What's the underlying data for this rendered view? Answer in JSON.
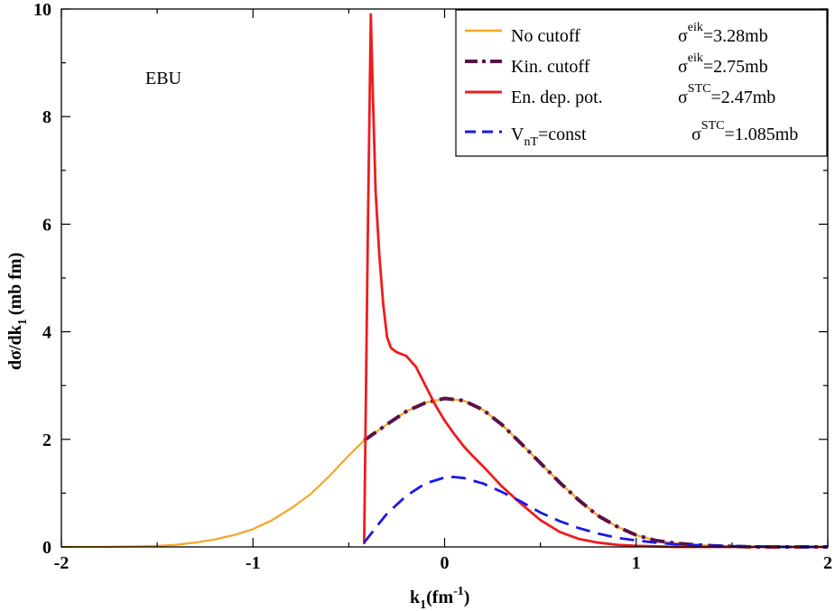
{
  "chart_data": {
    "type": "line",
    "title": "",
    "annotation": "EBU",
    "xlabel": {
      "main": "k",
      "sub": "1",
      "paren_open": "(fm",
      "sup": "-1",
      "paren_close": ")"
    },
    "ylabel": {
      "pre": "dσ/dk",
      "sub": "1",
      "post": "(mb fm)"
    },
    "xlim": [
      -2,
      2
    ],
    "ylim": [
      0,
      10
    ],
    "x_ticks": [
      -2,
      -1,
      0,
      1,
      2
    ],
    "x_tick_labels": [
      "-2",
      "-1",
      "0",
      "1",
      "2"
    ],
    "y_ticks": [
      0,
      2,
      4,
      6,
      8,
      10
    ],
    "y_tick_labels": [
      "0",
      "2",
      "4",
      "6",
      "8",
      "10"
    ],
    "grid": false,
    "legend_position": "top-right",
    "series": [
      {
        "name": "No cutoff",
        "color": "#f5a623",
        "dash": "solid",
        "sigma": {
          "symbol": "σ",
          "sup": "eik",
          "value": "=3.28mb"
        },
        "x": [
          -2.0,
          -1.8,
          -1.6,
          -1.5,
          -1.4,
          -1.3,
          -1.2,
          -1.1,
          -1.0,
          -0.9,
          -0.8,
          -0.7,
          -0.6,
          -0.5,
          -0.42,
          -0.3,
          -0.2,
          -0.1,
          0.0,
          0.1,
          0.2,
          0.3,
          0.4,
          0.5,
          0.6,
          0.7,
          0.8,
          0.9,
          1.0,
          1.1,
          1.2,
          1.3,
          1.4,
          1.5,
          1.6,
          1.8,
          2.0
        ],
        "y": [
          0.0,
          0.0,
          0.01,
          0.02,
          0.04,
          0.08,
          0.14,
          0.22,
          0.33,
          0.5,
          0.72,
          0.98,
          1.32,
          1.7,
          1.98,
          2.28,
          2.52,
          2.68,
          2.76,
          2.72,
          2.55,
          2.27,
          1.92,
          1.56,
          1.2,
          0.87,
          0.58,
          0.38,
          0.22,
          0.12,
          0.07,
          0.04,
          0.02,
          0.01,
          0.0,
          0.0,
          0.0
        ]
      },
      {
        "name": "Kin. cutoff",
        "color": "#5b1346",
        "dash": "dash-dot",
        "sigma": {
          "symbol": "σ",
          "sup": "eik",
          "value": "=2.75mb"
        },
        "x": [
          -0.42,
          -0.3,
          -0.2,
          -0.1,
          0.0,
          0.1,
          0.2,
          0.3,
          0.4,
          0.5,
          0.6,
          0.7,
          0.8,
          0.9,
          1.0,
          1.1,
          1.2,
          1.3,
          1.4,
          1.5,
          1.6,
          1.8,
          2.0
        ],
        "y": [
          1.98,
          2.28,
          2.52,
          2.68,
          2.76,
          2.72,
          2.55,
          2.27,
          1.92,
          1.56,
          1.2,
          0.87,
          0.58,
          0.38,
          0.22,
          0.12,
          0.07,
          0.04,
          0.02,
          0.01,
          0.0,
          0.0,
          0.0
        ]
      },
      {
        "name": "En. dep. pot.",
        "color": "#ee1c1c",
        "dash": "solid",
        "sigma": {
          "symbol": "σ",
          "sup": "STC",
          "value": "=2.47mb"
        },
        "x": [
          -0.42,
          -0.4,
          -0.385,
          -0.375,
          -0.36,
          -0.34,
          -0.32,
          -0.3,
          -0.28,
          -0.25,
          -0.2,
          -0.15,
          -0.1,
          -0.05,
          0.0,
          0.05,
          0.1,
          0.15,
          0.2,
          0.3,
          0.4,
          0.5,
          0.6,
          0.7,
          0.8,
          0.9,
          1.0,
          1.1,
          1.2,
          1.4,
          1.6,
          1.8,
          2.0
        ],
        "y": [
          0.05,
          6.0,
          9.9,
          8.5,
          6.6,
          5.4,
          4.5,
          3.9,
          3.7,
          3.62,
          3.55,
          3.35,
          3.0,
          2.65,
          2.35,
          2.1,
          1.87,
          1.68,
          1.5,
          1.12,
          0.8,
          0.5,
          0.28,
          0.15,
          0.08,
          0.04,
          0.02,
          0.01,
          0.0,
          0.0,
          0.0,
          0.0,
          0.0
        ]
      },
      {
        "name": "V_nT=const",
        "label_main": "V",
        "label_sub": "nT",
        "label_post": "=const",
        "color": "#1a1ae6",
        "dash": "dashed",
        "sigma": {
          "symbol": "σ",
          "sup": "STC",
          "value": "=1.085mb"
        },
        "x": [
          -0.42,
          -0.35,
          -0.3,
          -0.2,
          -0.1,
          0.0,
          0.05,
          0.1,
          0.2,
          0.3,
          0.4,
          0.5,
          0.6,
          0.7,
          0.8,
          0.9,
          1.0,
          1.1,
          1.2,
          1.4,
          1.6,
          1.8,
          2.0
        ],
        "y": [
          0.08,
          0.4,
          0.62,
          0.95,
          1.18,
          1.29,
          1.3,
          1.28,
          1.18,
          1.02,
          0.84,
          0.64,
          0.48,
          0.35,
          0.25,
          0.17,
          0.12,
          0.08,
          0.05,
          0.02,
          0.01,
          0.0,
          0.0
        ]
      }
    ]
  }
}
